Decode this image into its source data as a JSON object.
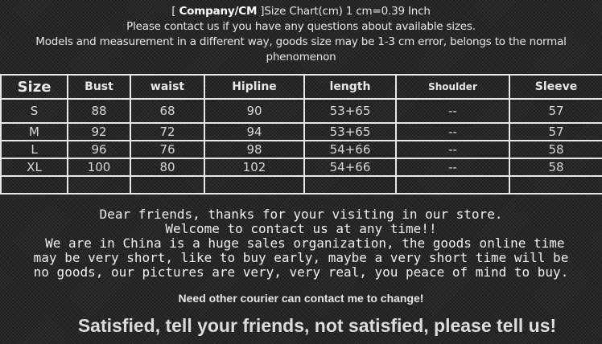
{
  "header": {
    "bracket_open": "[ ",
    "brand": "Company/CM",
    "title_rest": " ]Size Chart(cm) 1 cm=0.39 Inch",
    "line2": "Please contact us if you have any questions about available sizes.",
    "line3": "Models and measurement in a different way, goods size may be 1-3 cm error, belongs to the normal phenomenon"
  },
  "table": {
    "columns": [
      "Size",
      "Bust",
      "waist",
      "Hipline",
      "length",
      "Shoulder",
      "Sleeve"
    ],
    "rows": [
      [
        "S",
        "88",
        "68",
        "90",
        "53+65",
        "--",
        "57"
      ],
      [
        "M",
        "92",
        "72",
        "94",
        "53+65",
        "--",
        "57"
      ],
      [
        "L",
        "96",
        "76",
        "98",
        "54+66",
        "--",
        "58"
      ],
      [
        "XL",
        "100",
        "80",
        "102",
        "54+66",
        "--",
        "58"
      ],
      [
        "",
        "",
        "",
        "",
        "",
        "",
        ""
      ]
    ]
  },
  "message": {
    "line1": "Dear friends, thanks for your visiting in our store.",
    "line2": "Welcome to contact us at any time!!",
    "line3": " We are in China is a huge sales organization, the goods online time",
    "line4": "may be very short, like to buy early, maybe a very short time will be",
    "line5": "no goods, our pictures are very, very real, you peace of mind to buy."
  },
  "courier": "Need other courier can contact me to change!",
  "slogan": "Satisfied, tell your friends, not satisfied, please tell us!"
}
